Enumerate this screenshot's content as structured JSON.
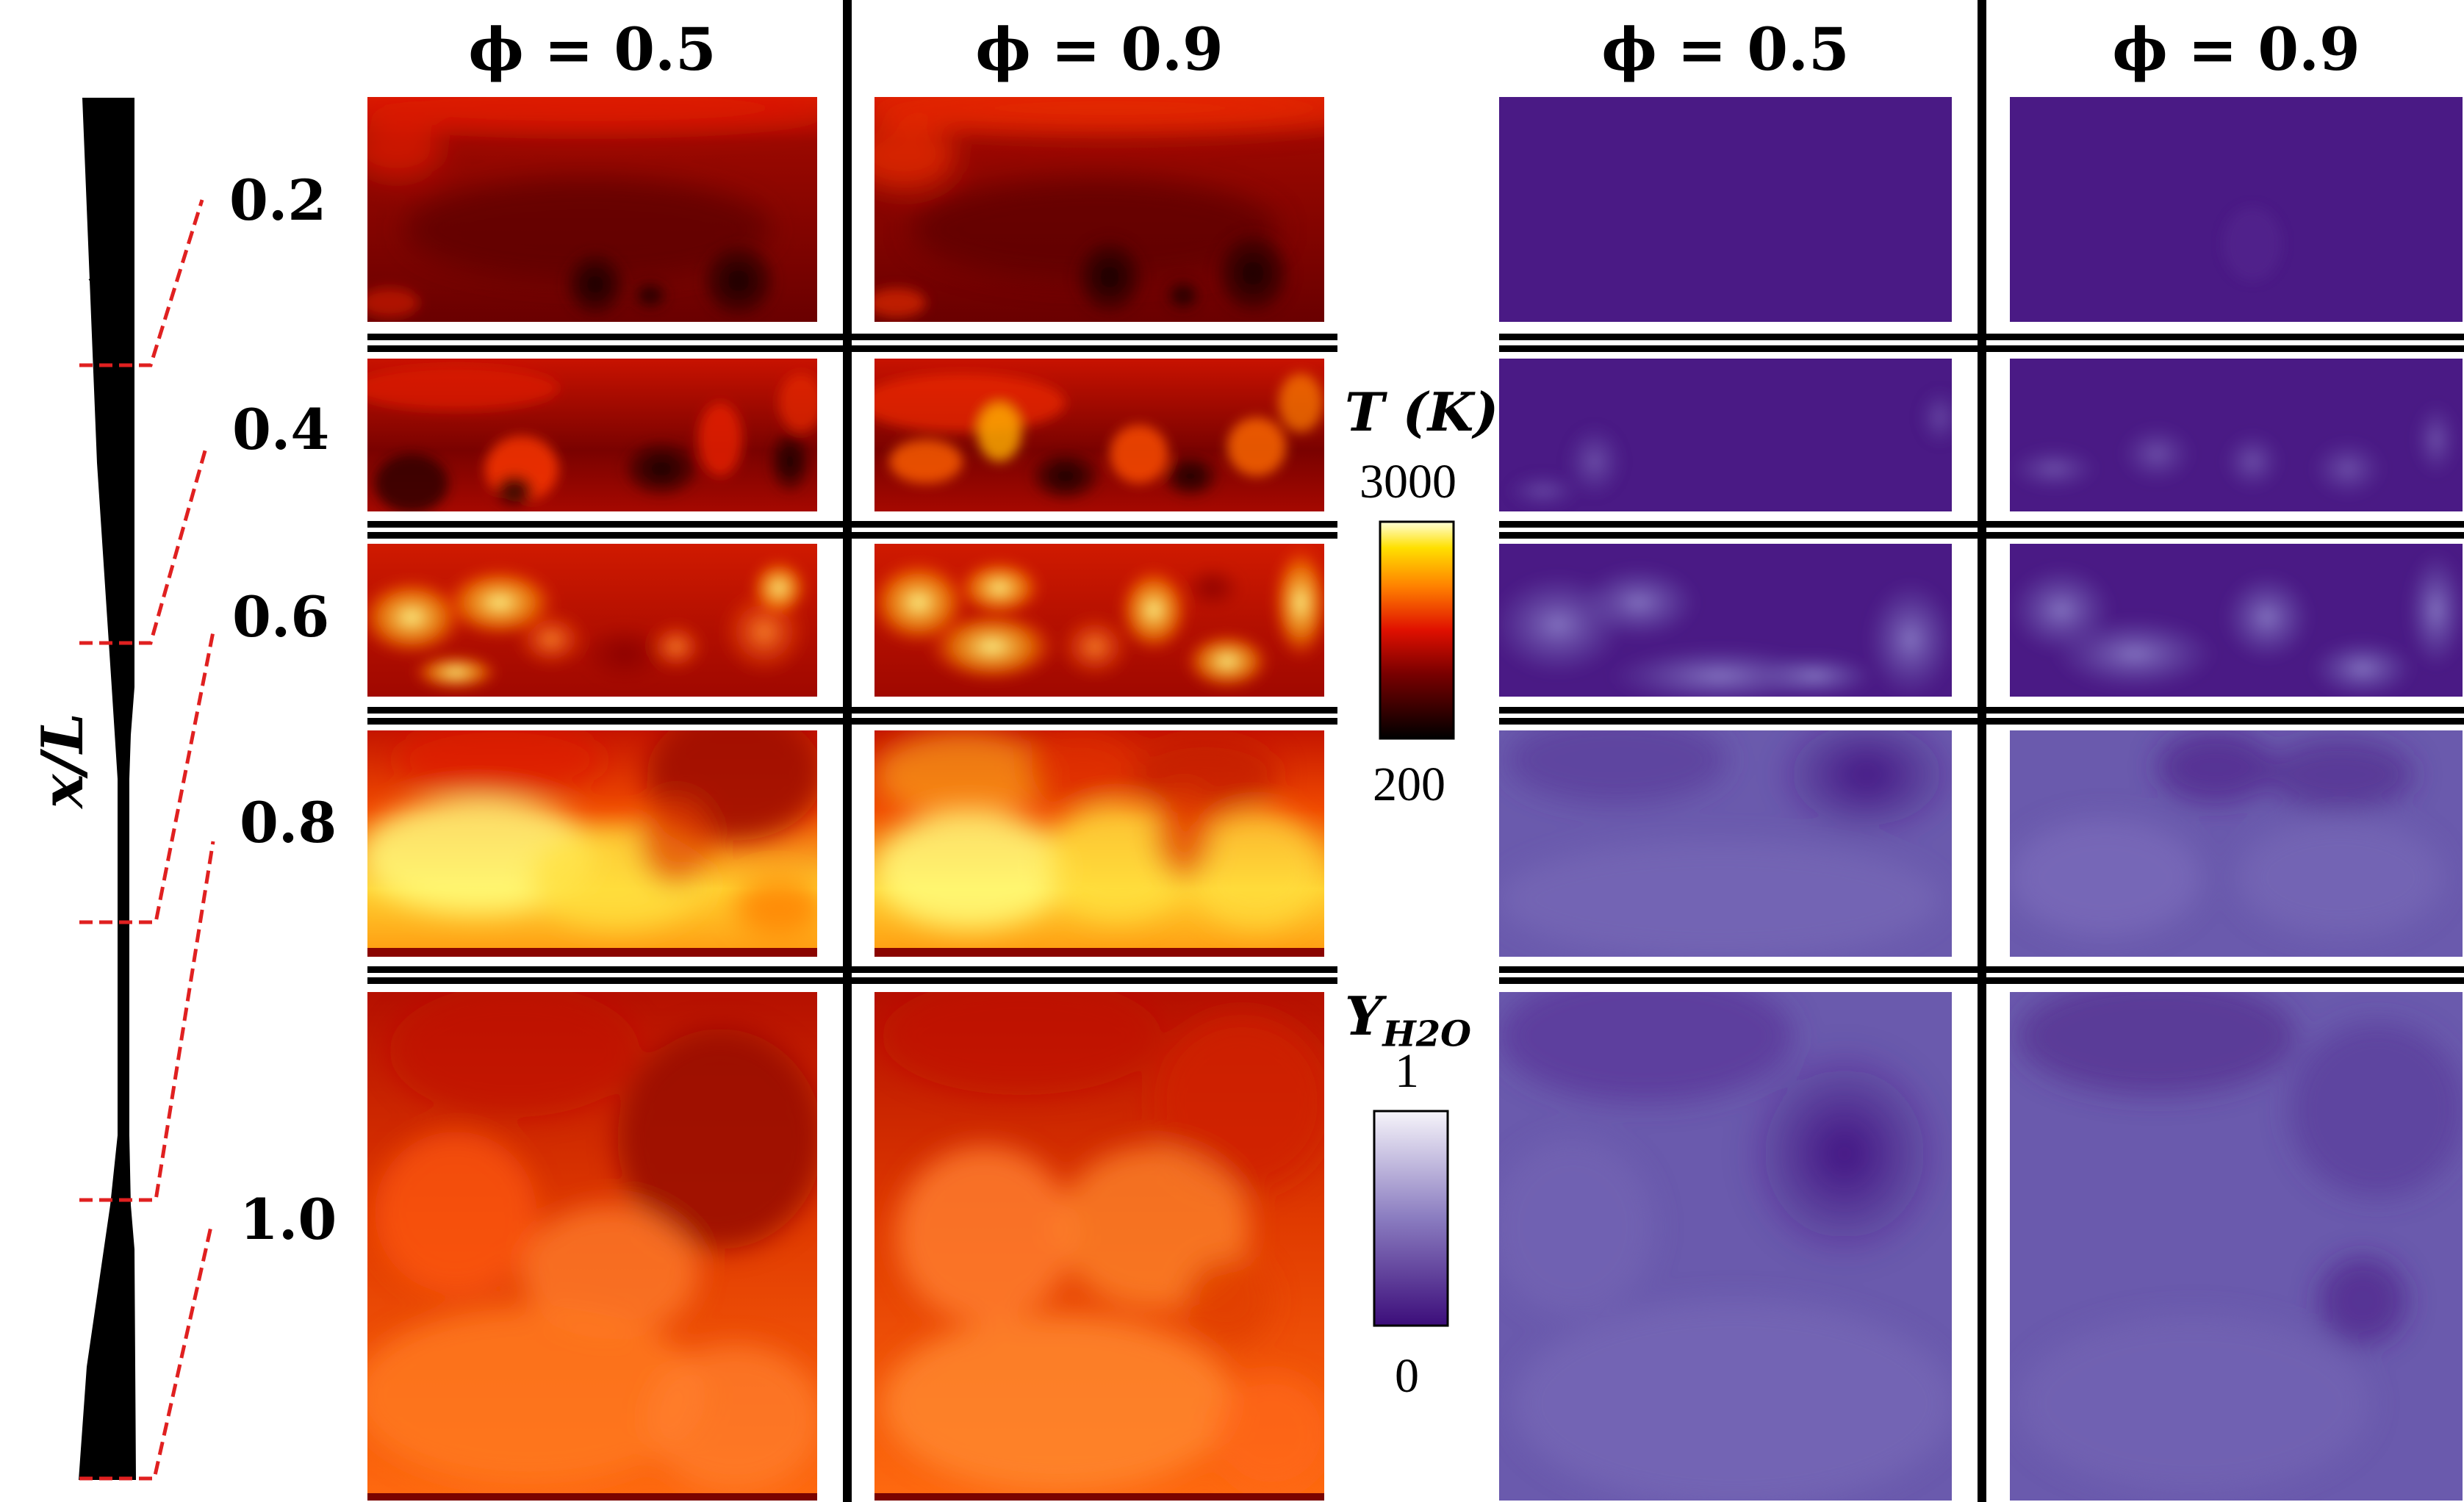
{
  "column_headers": {
    "temp_phi_05": "ϕ = 0.5",
    "temp_phi_09": "ϕ = 0.9",
    "h2o_phi_05": "ϕ = 0.5",
    "h2o_phi_09": "ϕ = 0.9"
  },
  "axis_label": "x/L",
  "stations": [
    "0.2",
    "0.4",
    "0.6",
    "0.8",
    "1.0"
  ],
  "temperature_colorbar": {
    "title": "T (K)",
    "max": "3000",
    "min": "200"
  },
  "h2o_colorbar": {
    "title": "Y",
    "subscript": "H2O",
    "max": "1",
    "min": "0"
  },
  "colors": {
    "guide_line": "#e02020",
    "divider": "#000000",
    "h2o_base": "#4a1a85",
    "temp_base": "#b81000"
  }
}
